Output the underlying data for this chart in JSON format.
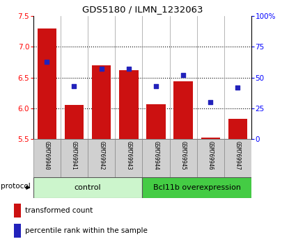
{
  "title": "GDS5180 / ILMN_1232063",
  "samples": [
    "GSM769940",
    "GSM769941",
    "GSM769942",
    "GSM769943",
    "GSM769944",
    "GSM769945",
    "GSM769946",
    "GSM769947"
  ],
  "transformed_counts": [
    7.3,
    6.05,
    6.7,
    6.62,
    6.06,
    6.44,
    5.52,
    5.83
  ],
  "percentile_ranks": [
    63,
    43,
    57,
    57,
    43,
    52,
    30,
    42
  ],
  "ylim_left": [
    5.5,
    7.5
  ],
  "ylim_right": [
    0,
    100
  ],
  "yticks_left": [
    5.5,
    6.0,
    6.5,
    7.0,
    7.5
  ],
  "yticks_right": [
    0,
    25,
    50,
    75,
    100
  ],
  "yticklabels_right": [
    "0",
    "25",
    "50",
    "75",
    "100%"
  ],
  "bar_color": "#cc1111",
  "dot_color": "#2222bb",
  "control_group_count": 4,
  "treatment_group_count": 4,
  "control_label": "control",
  "treatment_label": "Bcl11b overexpression",
  "control_bg": "#ccf5cc",
  "treatment_bg": "#44cc44",
  "protocol_label": "protocol",
  "legend_bar_label": "transformed count",
  "legend_dot_label": "percentile rank within the sample",
  "bar_base": 5.5,
  "bar_width": 0.7,
  "grid_yticks": [
    6.0,
    6.5,
    7.0
  ]
}
